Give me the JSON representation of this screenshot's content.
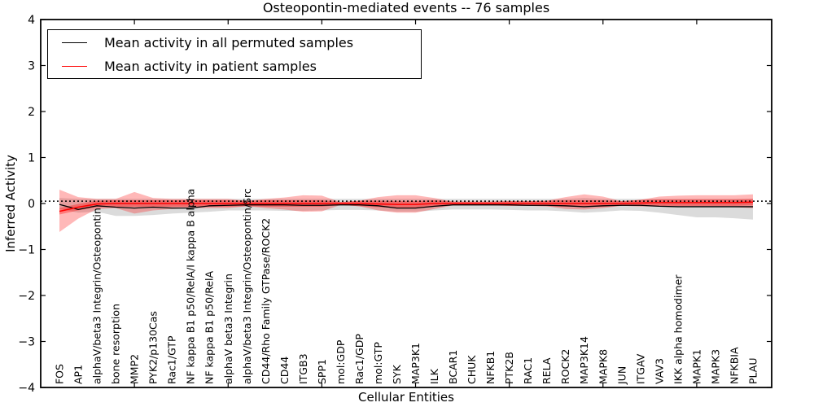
{
  "title": "Osteopontin-mediated events -- 76 samples",
  "legend": {
    "items": [
      {
        "label": "Mean activity in all permuted samples",
        "color": "#000000"
      },
      {
        "label": "Mean activity in patient samples",
        "color": "#ff0000"
      }
    ]
  },
  "chart_data": {
    "type": "line",
    "title": "Osteopontin-mediated events -- 76 samples",
    "xlabel": "Cellular Entities",
    "ylabel": "Inferred Activity",
    "ylim": [
      -4,
      4
    ],
    "yticks": [
      4,
      3,
      2,
      1,
      0,
      -1,
      -2,
      -3,
      -4
    ],
    "x_major_tick_indices": [
      4,
      9,
      14,
      19,
      24,
      29,
      34
    ],
    "grid": false,
    "legend_position": "upper left",
    "categories": [
      "FOS",
      "AP1",
      "alphaV/beta3 Integrin/Osteopontin",
      "bone resorption",
      "MMP2",
      "PYK2/p130Cas",
      "Rac1/GTP",
      "NF kappa B1 p50/RelA/I kappa B alpha",
      "NF kappa B1 p50/RelA",
      "alphaV beta3 Integrin",
      "alphaV/beta3 Integrin/Osteopontin/Src",
      "CD44/Rho Family GTPase/ROCK2",
      "CD44",
      "ITGB3",
      "SPP1",
      "mol:GDP",
      "Rac1/GDP",
      "mol:GTP",
      "SYK",
      "MAP3K1",
      "ILK",
      "BCAR1",
      "CHUK",
      "NFKB1",
      "PTK2B",
      "RAC1",
      "RELA",
      "ROCK2",
      "MAP3K14",
      "MAPK8",
      "JUN",
      "ITGAV",
      "VAV3",
      "IKK alpha homodimer",
      "MAPK1",
      "MAPK3",
      "NFKBIA",
      "PLAU"
    ],
    "reference_line": {
      "name": "zero reference",
      "style": "dotted",
      "color": "#000000",
      "value": 0.05
    },
    "series": [
      {
        "name": "Mean activity in all permuted samples",
        "color": "#000000",
        "style": "solid",
        "width": 1.3,
        "values": [
          -0.02,
          -0.13,
          -0.05,
          -0.08,
          -0.1,
          -0.08,
          -0.1,
          -0.1,
          -0.05,
          -0.04,
          -0.03,
          -0.03,
          -0.03,
          -0.04,
          -0.04,
          -0.03,
          -0.03,
          -0.05,
          -0.1,
          -0.1,
          -0.06,
          -0.03,
          -0.03,
          -0.03,
          -0.03,
          -0.04,
          -0.04,
          -0.05,
          -0.07,
          -0.05,
          -0.04,
          -0.04,
          -0.06,
          -0.07,
          -0.07,
          -0.07,
          -0.07,
          -0.07
        ]
      },
      {
        "name": "Mean activity in patient samples",
        "color": "#ff0000",
        "style": "solid",
        "width": 1.6,
        "values": [
          -0.17,
          -0.08,
          -0.01,
          0,
          0,
          0,
          0,
          0,
          0,
          0,
          0,
          0,
          0,
          0,
          0,
          0,
          0,
          -0.01,
          -0.02,
          -0.02,
          0,
          0,
          0,
          0,
          0,
          0,
          0,
          0,
          0,
          0,
          0,
          0.01,
          0.02,
          0.02,
          0.02,
          0.02,
          0.02,
          0.03
        ]
      }
    ],
    "bands": [
      {
        "name": "permuted sample range",
        "color": "#999999",
        "opacity": 0.35,
        "upper": [
          0.12,
          0.1,
          0.1,
          0.1,
          0.1,
          0.1,
          0.1,
          0.1,
          0.1,
          0.1,
          0.1,
          0.1,
          0.1,
          0.1,
          0.1,
          0.1,
          0.1,
          0.1,
          0.1,
          0.1,
          0.1,
          0.1,
          0.1,
          0.1,
          0.1,
          0.1,
          0.1,
          0.1,
          0.12,
          0.1,
          0.1,
          0.1,
          0.1,
          0.1,
          0.1,
          0.1,
          0.1,
          0.1
        ],
        "lower": [
          -0.12,
          -0.2,
          -0.18,
          -0.27,
          -0.27,
          -0.25,
          -0.22,
          -0.2,
          -0.18,
          -0.15,
          -0.15,
          -0.15,
          -0.16,
          -0.16,
          -0.15,
          -0.14,
          -0.14,
          -0.15,
          -0.18,
          -0.18,
          -0.15,
          -0.13,
          -0.13,
          -0.13,
          -0.14,
          -0.15,
          -0.15,
          -0.17,
          -0.2,
          -0.18,
          -0.15,
          -0.16,
          -0.2,
          -0.25,
          -0.3,
          -0.3,
          -0.32,
          -0.35
        ]
      },
      {
        "name": "patient sample range outer",
        "color": "#ff0000",
        "opacity": 0.28,
        "upper": [
          0.3,
          0.14,
          0.1,
          0.1,
          0.25,
          0.12,
          0.1,
          0.1,
          0.1,
          0.1,
          0.06,
          0.1,
          0.13,
          0.18,
          0.17,
          0.03,
          0.06,
          0.14,
          0.18,
          0.18,
          0.12,
          0.04,
          0.04,
          0.04,
          0.05,
          0.05,
          0.06,
          0.14,
          0.2,
          0.15,
          0.05,
          0.08,
          0.15,
          0.17,
          0.18,
          0.18,
          0.18,
          0.2
        ],
        "lower": [
          -0.62,
          -0.33,
          -0.12,
          -0.1,
          -0.22,
          -0.15,
          -0.12,
          -0.1,
          -0.1,
          -0.1,
          -0.06,
          -0.1,
          -0.13,
          -0.18,
          -0.17,
          -0.03,
          -0.06,
          -0.15,
          -0.2,
          -0.2,
          -0.12,
          -0.04,
          -0.04,
          -0.04,
          -0.05,
          -0.05,
          -0.06,
          -0.12,
          -0.13,
          -0.1,
          -0.05,
          -0.06,
          -0.07,
          -0.08,
          -0.08,
          -0.08,
          -0.08,
          -0.1
        ]
      },
      {
        "name": "patient sample range inner",
        "color": "#ff0000",
        "opacity": 0.33,
        "upper": [
          -0.1,
          -0.01,
          0.06,
          0.07,
          0.07,
          0.07,
          0.07,
          0.07,
          0.07,
          0.07,
          0.06,
          0.07,
          0.07,
          0.07,
          0.07,
          0.03,
          0.06,
          0.06,
          0.05,
          0.05,
          0.07,
          0.04,
          0.04,
          0.04,
          0.05,
          0.05,
          0.06,
          0.07,
          0.07,
          0.07,
          0.05,
          0.08,
          0.09,
          0.09,
          0.09,
          0.09,
          0.09,
          0.1
        ],
        "lower": [
          -0.24,
          -0.15,
          -0.08,
          -0.07,
          -0.07,
          -0.07,
          -0.07,
          -0.07,
          -0.07,
          -0.07,
          -0.06,
          -0.07,
          -0.07,
          -0.07,
          -0.07,
          -0.03,
          -0.06,
          -0.08,
          -0.09,
          -0.09,
          -0.07,
          -0.04,
          -0.04,
          -0.04,
          -0.05,
          -0.05,
          -0.06,
          -0.07,
          -0.07,
          -0.07,
          -0.05,
          -0.06,
          -0.05,
          -0.05,
          -0.05,
          -0.05,
          -0.05,
          -0.04
        ]
      }
    ]
  }
}
